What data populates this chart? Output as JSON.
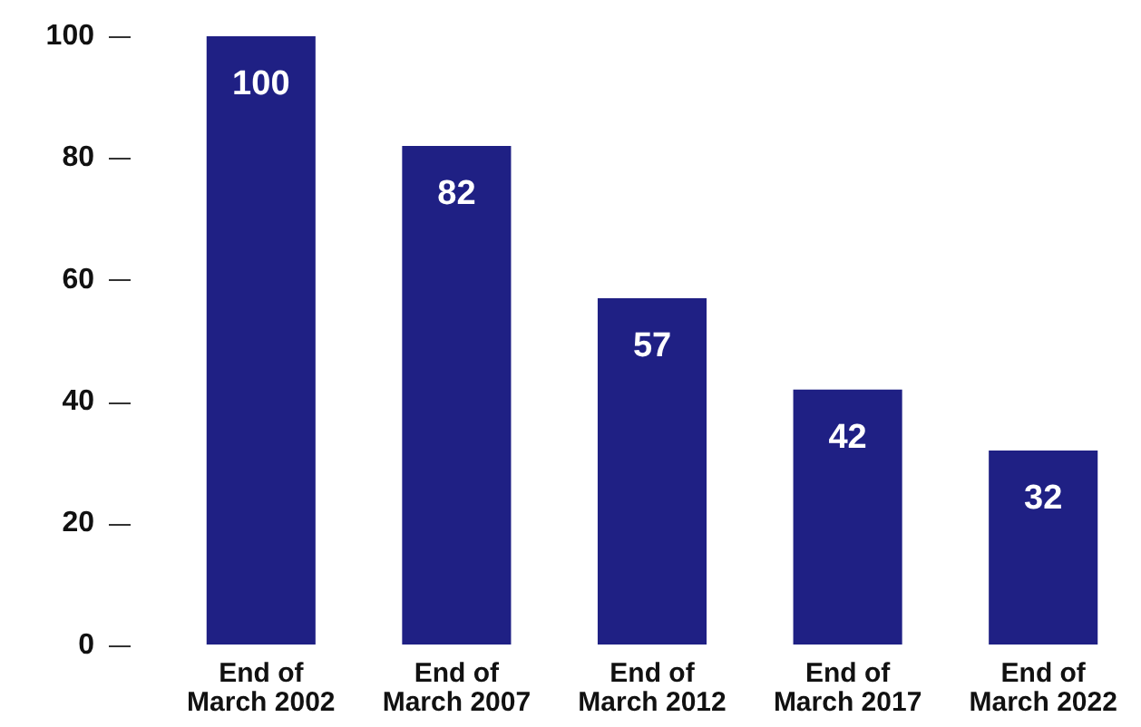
{
  "chart_data": {
    "type": "bar",
    "categories": [
      "End of March 2002",
      "End of March 2007",
      "End of March 2012",
      "End of March 2017",
      "End of March 2022"
    ],
    "values": [
      100,
      82,
      57,
      42,
      32
    ],
    "color": "#1f2084",
    "ylim": [
      0,
      100
    ],
    "yticks": [
      0,
      20,
      40,
      60,
      80,
      100
    ],
    "data_labels": true
  }
}
